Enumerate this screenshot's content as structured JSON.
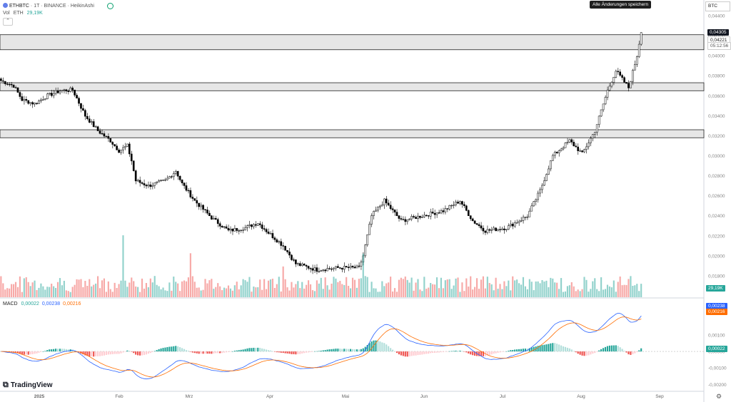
{
  "header": {
    "symbol": "ETHBTC",
    "separator1": "·",
    "interval": "1T",
    "separator2": "·",
    "exchange": "BINANCE",
    "separator3": "·",
    "style": "HeikinAshi",
    "vol_label": "Vol",
    "vol_asset": "ETH",
    "vol_value": "29,19K",
    "save_tooltip": "Alle Änderungen speichern",
    "currency": "BTC"
  },
  "price_badges": {
    "high": "0,04305",
    "last": "0,04221",
    "countdown": "05:12:56",
    "volume": "29,19K"
  },
  "macd": {
    "label": "MACD",
    "hist_value": "0,00022",
    "macd_value": "0,00238",
    "signal_value": "0,00216",
    "badge_macd": "0,00238",
    "badge_signal": "0,00216",
    "badge_hist": "0,00022",
    "ticks": [
      "0,00100",
      "0,00000",
      "-0,00100",
      "-0,00200"
    ]
  },
  "colors": {
    "up": "#26a69a",
    "down": "#ef5350",
    "candle_up": "#ffffff",
    "candle_down": "#000000",
    "macd_line": "#2962ff",
    "signal_line": "#ff6d00"
  },
  "brand": "TradingView",
  "chart_data": {
    "type": "candlestick",
    "title": "ETHBTC · 1T · BINANCE · HeikinAshi",
    "y_ticks": [
      "0,04400",
      "0,04200",
      "0,04000",
      "0,03800",
      "0,03600",
      "0,03400",
      "0,03200",
      "0,03000",
      "0,02800",
      "0,02600",
      "0,02400",
      "0,02200",
      "0,02000",
      "0,01800"
    ],
    "x_ticks": [
      "2025",
      "Feb",
      "Mrz",
      "Apr",
      "Mai",
      "Jun",
      "Jul",
      "Aug",
      "Sep"
    ],
    "zones": [
      {
        "from": 0.0406,
        "to": 0.0421
      },
      {
        "from": 0.0365,
        "to": 0.0373
      },
      {
        "from": 0.0318,
        "to": 0.0326
      }
    ],
    "anchors": [
      [
        0,
        0.0375
      ],
      [
        6,
        0.037
      ],
      [
        10,
        0.0356
      ],
      [
        16,
        0.0352
      ],
      [
        22,
        0.036
      ],
      [
        28,
        0.0365
      ],
      [
        34,
        0.0366
      ],
      [
        40,
        0.034
      ],
      [
        46,
        0.0325
      ],
      [
        52,
        0.0315
      ],
      [
        56,
        0.0305
      ],
      [
        60,
        0.031
      ],
      [
        62,
        0.0295
      ],
      [
        64,
        0.0275
      ],
      [
        70,
        0.027
      ],
      [
        78,
        0.0275
      ],
      [
        83,
        0.0285
      ],
      [
        86,
        0.0272
      ],
      [
        92,
        0.0255
      ],
      [
        100,
        0.0238
      ],
      [
        108,
        0.0225
      ],
      [
        116,
        0.0228
      ],
      [
        122,
        0.0233
      ],
      [
        126,
        0.0225
      ],
      [
        134,
        0.021
      ],
      [
        140,
        0.0192
      ],
      [
        150,
        0.0186
      ],
      [
        160,
        0.0188
      ],
      [
        170,
        0.0188
      ],
      [
        172,
        0.02
      ],
      [
        176,
        0.024
      ],
      [
        182,
        0.0255
      ],
      [
        190,
        0.0235
      ],
      [
        200,
        0.024
      ],
      [
        210,
        0.0245
      ],
      [
        218,
        0.0255
      ],
      [
        224,
        0.0235
      ],
      [
        230,
        0.0225
      ],
      [
        240,
        0.0228
      ],
      [
        250,
        0.024
      ],
      [
        256,
        0.0265
      ],
      [
        262,
        0.03
      ],
      [
        270,
        0.0315
      ],
      [
        276,
        0.0302
      ],
      [
        282,
        0.0325
      ],
      [
        288,
        0.0365
      ],
      [
        292,
        0.0385
      ],
      [
        298,
        0.0368
      ],
      [
        302,
        0.04
      ],
      [
        304,
        0.0425
      ]
    ],
    "total_bars": 305,
    "volume_max": 110,
    "macd_range": [
      -0.0022,
      0.0029
    ]
  }
}
